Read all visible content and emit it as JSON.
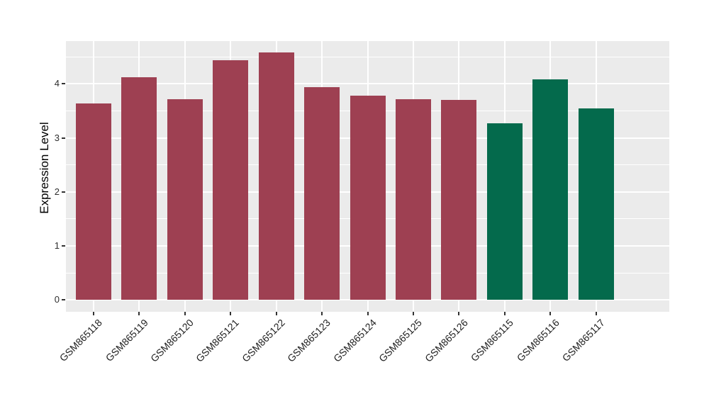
{
  "chart_data": {
    "type": "bar",
    "title": "",
    "xlabel": "",
    "ylabel": "Expression Level",
    "categories": [
      "GSM865118",
      "GSM865119",
      "GSM865120",
      "GSM865121",
      "GSM865122",
      "GSM865123",
      "GSM865124",
      "GSM865125",
      "GSM865126",
      "GSM865115",
      "GSM865116",
      "GSM865117"
    ],
    "values": [
      3.64,
      4.12,
      3.72,
      4.44,
      4.58,
      3.94,
      3.78,
      3.72,
      3.7,
      3.27,
      4.08,
      3.55
    ],
    "bar_colors": [
      "#9E4052",
      "#9E4052",
      "#9E4052",
      "#9E4052",
      "#9E4052",
      "#9E4052",
      "#9E4052",
      "#9E4052",
      "#9E4052",
      "#046A4C",
      "#046A4C",
      "#046A4C"
    ],
    "color_groups": {
      "maroon": "#9E4052",
      "green": "#046A4C"
    },
    "yticks": [
      0,
      1,
      2,
      3,
      4
    ],
    "yminor": [
      0.5,
      1.5,
      2.5,
      3.5,
      4.5
    ],
    "ylim": [
      -0.23,
      4.79
    ],
    "panel_bg": "#EBEBEB",
    "grid_color": "#FFFFFF",
    "plot_bg": "#FFFFFF",
    "legend": "none",
    "grid": "on",
    "x_tick_rotation": 45
  }
}
